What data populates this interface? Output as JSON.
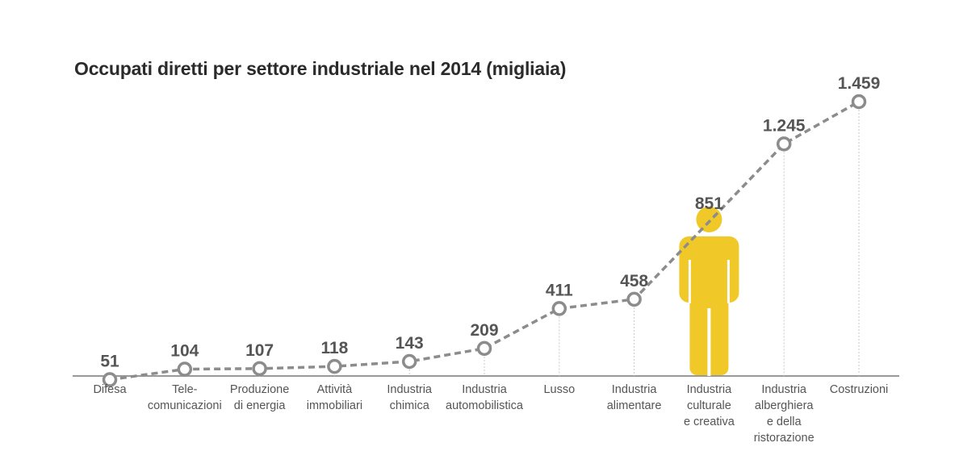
{
  "colors": {
    "line": "#8c8c8c",
    "axis": "#999999",
    "highlight": "#f0c929",
    "text": "#555555",
    "title": "#2b2b2b"
  },
  "icons": {
    "highlight_marker": "person-icon"
  },
  "chart_data": {
    "type": "line",
    "title": "Occupati diretti per settore industriale nel 2014 (migliaia)",
    "xlabel": "",
    "ylabel": "",
    "grid": false,
    "highlight_index": 8,
    "categories": [
      [
        "Difesa"
      ],
      [
        "Tele-",
        "comunicazioni"
      ],
      [
        "Produzione",
        "di energia"
      ],
      [
        "Attività",
        "immobiliari"
      ],
      [
        "Industria",
        "chimica"
      ],
      [
        "Industria",
        "automobilistica"
      ],
      [
        "Lusso"
      ],
      [
        "Industria",
        "alimentare"
      ],
      [
        "Industria",
        "culturale",
        "e creativa"
      ],
      [
        "Industria",
        "alberghiera",
        "e della",
        "ristorazione"
      ],
      [
        "Costruzioni"
      ]
    ],
    "values": [
      51,
      104,
      107,
      118,
      143,
      209,
      411,
      458,
      851,
      1245,
      1459
    ],
    "value_labels": [
      "51",
      "104",
      "107",
      "118",
      "143",
      "209",
      "411",
      "458",
      "851",
      "1.245",
      "1.459"
    ]
  }
}
